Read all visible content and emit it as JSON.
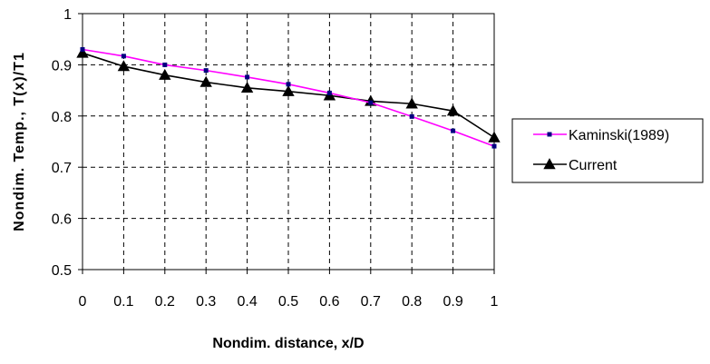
{
  "chart_data": {
    "type": "line",
    "title": "",
    "xlabel": "Nondim. distance, x/D",
    "ylabel": "Nondim. Temp., T(x)/T1",
    "xlim": [
      0,
      1
    ],
    "ylim": [
      0.5,
      1
    ],
    "x_ticks": [
      "0",
      "0.1",
      "0.2",
      "0.3",
      "0.4",
      "0.5",
      "0.6",
      "0.7",
      "0.8",
      "0.9",
      "1"
    ],
    "y_ticks": [
      "0.5",
      "0.6",
      "0.7",
      "0.8",
      "0.9",
      "1"
    ],
    "grid": true,
    "legend_position": "right",
    "x": [
      0,
      0.1,
      0.2,
      0.3,
      0.4,
      0.5,
      0.6,
      0.7,
      0.8,
      0.9,
      1
    ],
    "series": [
      {
        "name": "Kaminski(1989)",
        "color": "#ff00ff",
        "marker": "square",
        "marker_color": "#000080",
        "values": [
          0.93,
          0.917,
          0.9,
          0.889,
          0.876,
          0.862,
          0.845,
          0.826,
          0.799,
          0.771,
          0.741
        ]
      },
      {
        "name": "Current",
        "color": "#000000",
        "marker": "triangle",
        "marker_color": "#000000",
        "values": [
          0.923,
          0.897,
          0.88,
          0.866,
          0.855,
          0.848,
          0.84,
          0.829,
          0.824,
          0.81,
          0.758
        ]
      }
    ]
  }
}
